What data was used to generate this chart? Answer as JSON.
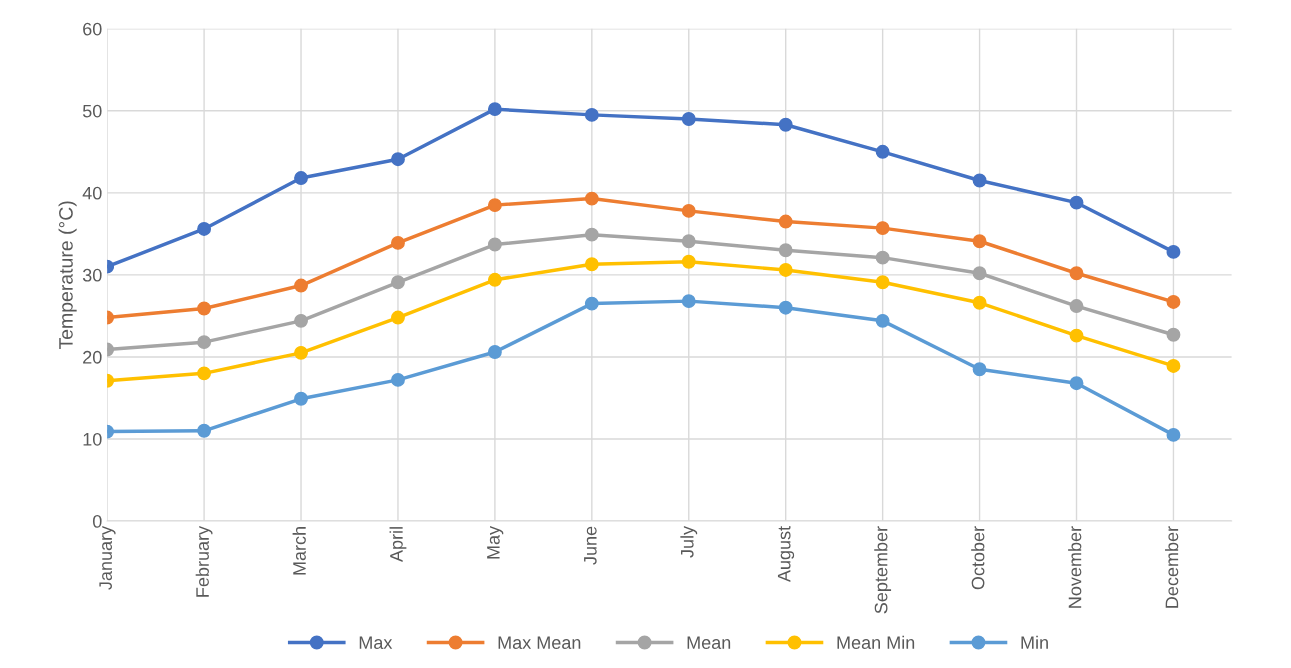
{
  "chart_data": {
    "type": "line",
    "ylabel": "Temperature (°C)",
    "categories": [
      "January",
      "February",
      "March",
      "April",
      "May",
      "June",
      "July",
      "August",
      "September",
      "October",
      "November",
      "December"
    ],
    "series": [
      {
        "name": "Max",
        "color": "#4472c4",
        "values": [
          31.0,
          35.6,
          41.8,
          44.1,
          50.2,
          49.5,
          49.0,
          48.3,
          45.0,
          41.5,
          38.8,
          32.8
        ]
      },
      {
        "name": "Max Mean",
        "color": "#ed7d31",
        "values": [
          24.8,
          25.9,
          28.7,
          33.9,
          38.5,
          39.3,
          37.8,
          36.5,
          35.7,
          34.1,
          30.2,
          26.7
        ]
      },
      {
        "name": "Mean",
        "color": "#a5a5a5",
        "values": [
          20.9,
          21.8,
          24.4,
          29.1,
          33.7,
          34.9,
          34.1,
          33.0,
          32.1,
          30.2,
          26.2,
          22.7
        ]
      },
      {
        "name": "Mean Min",
        "color": "#ffc000",
        "values": [
          17.1,
          18.0,
          20.5,
          24.8,
          29.4,
          31.3,
          31.6,
          30.6,
          29.1,
          26.6,
          22.6,
          18.9
        ]
      },
      {
        "name": "Min",
        "color": "#5b9bd5",
        "values": [
          10.9,
          11.0,
          14.9,
          17.2,
          20.6,
          26.5,
          26.8,
          26.0,
          24.4,
          18.5,
          16.8,
          10.5
        ]
      }
    ],
    "ylim": [
      0,
      60
    ],
    "yticks": [
      0,
      10,
      20,
      30,
      40,
      50,
      60
    ],
    "grid": true,
    "legend": "bottom",
    "marker": "circle",
    "line_style": "solid"
  }
}
